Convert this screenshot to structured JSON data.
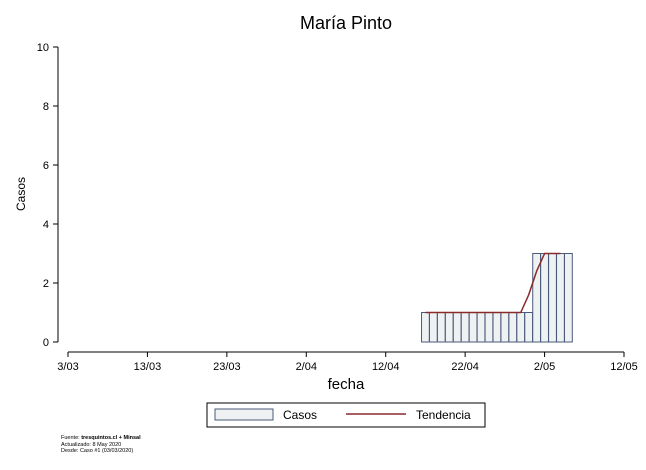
{
  "chart_data": {
    "type": "bar",
    "title": "María Pinto",
    "xlabel": "fecha",
    "ylabel": "Casos",
    "ylim": [
      0,
      10
    ],
    "yticks": [
      0,
      2,
      4,
      6,
      8,
      10
    ],
    "x_start": "2020-03-03",
    "x_end": "2020-05-12",
    "xticks": [
      "3/03",
      "13/03",
      "23/03",
      "2/04",
      "12/04",
      "22/04",
      "2/05",
      "12/05"
    ],
    "grid": false,
    "legend_position": "bottom",
    "bars": {
      "name": "Casos",
      "dates": [
        "2020-04-17",
        "2020-04-18",
        "2020-04-19",
        "2020-04-20",
        "2020-04-21",
        "2020-04-22",
        "2020-04-23",
        "2020-04-24",
        "2020-04-25",
        "2020-04-26",
        "2020-04-27",
        "2020-04-28",
        "2020-04-29",
        "2020-04-30",
        "2020-05-01",
        "2020-05-02",
        "2020-05-03",
        "2020-05-04",
        "2020-05-05"
      ],
      "values": [
        1,
        1,
        1,
        1,
        1,
        1,
        1,
        1,
        1,
        1,
        1,
        1,
        1,
        1,
        3,
        3,
        3,
        3,
        3
      ],
      "fill": "#eef2f3",
      "stroke": "#4a5a7a"
    },
    "trend": {
      "name": "Tendencia",
      "dates": [
        "2020-04-17",
        "2020-04-20",
        "2020-04-23",
        "2020-04-26",
        "2020-04-29",
        "2020-04-30",
        "2020-05-01",
        "2020-05-02",
        "2020-05-03",
        "2020-05-04"
      ],
      "values": [
        1,
        1,
        1,
        1,
        1,
        1.6,
        2.4,
        3,
        3,
        3
      ],
      "color": "#8b2a2a"
    },
    "legend": [
      "Casos",
      "Tendencia"
    ]
  },
  "footnote": {
    "source_prefix": "Fuente: ",
    "source_bold": "tresquintos.cl + Minsal",
    "updated": "Actualizado: 8 May 2020",
    "since": "Desde: Caso #1  (03/03/2020)"
  }
}
